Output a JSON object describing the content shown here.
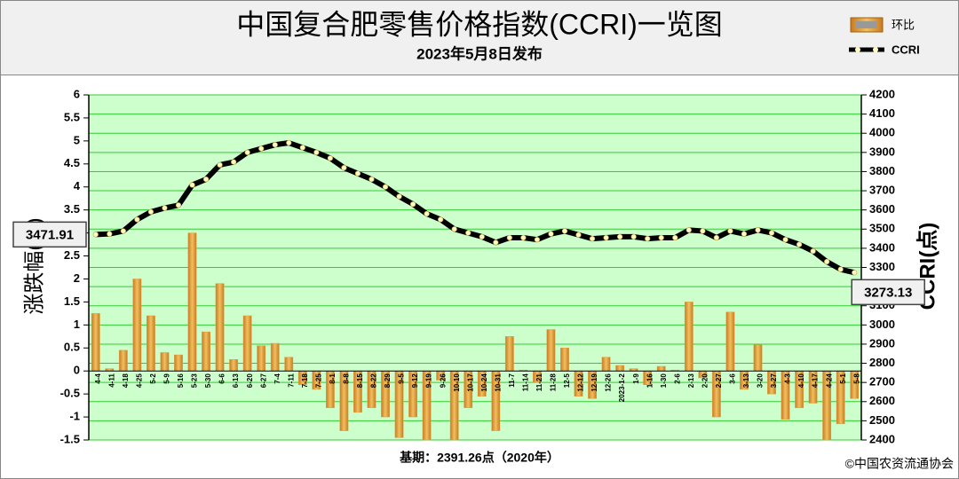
{
  "chart_data": {
    "type": "combo",
    "title": "中国复合肥零售价格指数(CCRI)一览图",
    "subtitle": "2023年5月8日发布",
    "y_label": "涨跌幅(%)",
    "y2_label": "CCRI(点)",
    "base_note": "基期：2391.26点（2020年）",
    "source": "©中国农资流通协会",
    "categories": [
      "4-4",
      "4-11",
      "4-18",
      "4-25",
      "5-2",
      "5-9",
      "5-16",
      "5-23",
      "5-30",
      "6-6",
      "6-13",
      "6-20",
      "6-27",
      "7-4",
      "7-11",
      "7-18",
      "7-25",
      "8-1",
      "8-8",
      "8-15",
      "8-22",
      "8-29",
      "9-5",
      "9-12",
      "9-19",
      "9-26",
      "10-10",
      "10-17",
      "10-24",
      "10-31",
      "11-7",
      "11-14",
      "11-21",
      "11-28",
      "12-5",
      "12-12",
      "12-19",
      "12-26",
      "2023-1-2",
      "1-9",
      "1-16",
      "1-30",
      "2-6",
      "2-13",
      "2-20",
      "2-27",
      "3-6",
      "3-13",
      "3-20",
      "3-27",
      "4-3",
      "4-10",
      "4-17",
      "4-24",
      "5-1",
      "5-8"
    ],
    "series": [
      {
        "name": "环比",
        "type": "bar",
        "color": "#e0a040",
        "values": [
          1.25,
          0.05,
          0.45,
          2.0,
          1.2,
          0.4,
          0.35,
          3.0,
          0.85,
          1.9,
          0.25,
          1.2,
          0.55,
          0.6,
          0.3,
          -0.3,
          -0.4,
          -0.8,
          -1.3,
          -0.9,
          -0.8,
          -1.0,
          -1.45,
          -1.0,
          -1.5,
          -0.2,
          -1.5,
          -0.8,
          -0.55,
          -1.3,
          0.75,
          0.02,
          -0.25,
          0.9,
          0.5,
          -0.55,
          -0.6,
          0.3,
          0.12,
          0.05,
          -0.3,
          0.1,
          0.02,
          1.5,
          -0.15,
          -1.0,
          1.28,
          -0.4,
          0.57,
          -0.5,
          -1.05,
          -0.8,
          -0.7,
          -1.5,
          -1.15,
          -0.6
        ]
      },
      {
        "name": "CCRI",
        "type": "line",
        "axis": "y2",
        "color": "#000000",
        "values": [
          3471.91,
          3475,
          3490,
          3550,
          3590,
          3610,
          3625,
          3730,
          3760,
          3835,
          3850,
          3900,
          3920,
          3940,
          3950,
          3925,
          3900,
          3870,
          3820,
          3790,
          3760,
          3720,
          3670,
          3630,
          3580,
          3550,
          3500,
          3480,
          3460,
          3430,
          3455,
          3455,
          3445,
          3475,
          3490,
          3470,
          3450,
          3455,
          3460,
          3460,
          3450,
          3455,
          3455,
          3495,
          3490,
          3455,
          3490,
          3475,
          3495,
          3480,
          3445,
          3420,
          3385,
          3330,
          3290,
          3273.13
        ]
      }
    ],
    "ylim": [
      -1.5,
      6
    ],
    "yticks": [
      -1.5,
      -1,
      -0.5,
      0,
      0.5,
      1,
      1.5,
      2,
      2.5,
      3,
      3.5,
      4,
      4.5,
      5,
      5.5,
      6
    ],
    "y2lim": [
      2400,
      4200
    ],
    "y2ticks": [
      2400,
      2500,
      2600,
      2700,
      2800,
      2900,
      3000,
      3100,
      3200,
      3300,
      3400,
      3500,
      3600,
      3700,
      3800,
      3900,
      4000,
      4100,
      4200
    ],
    "grid": true
  }
}
